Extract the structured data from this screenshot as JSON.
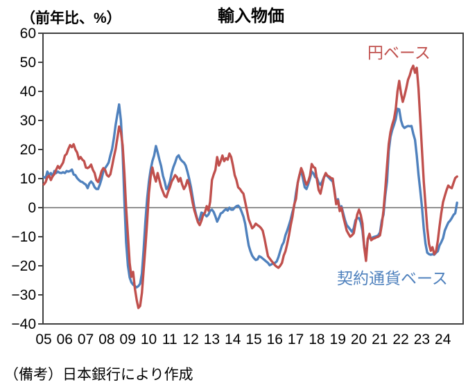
{
  "header": {
    "title": "輸入物価",
    "unit_label": "（前年比、%）"
  },
  "footer": {
    "note": "（備考）日本銀行により作成"
  },
  "chart_data": {
    "type": "line",
    "title": "輸入物価",
    "ylabel": "（前年比、%）",
    "xlabel": "",
    "ylim": [
      -40,
      60
    ],
    "xlim": [
      2005,
      2025
    ],
    "y_ticks": [
      60,
      50,
      40,
      30,
      20,
      10,
      0,
      -10,
      -20,
      -30,
      -40
    ],
    "x_tick_labels": [
      "05",
      "06",
      "07",
      "08",
      "09",
      "10",
      "11",
      "12",
      "13",
      "14",
      "15",
      "16",
      "17",
      "18",
      "19",
      "20",
      "21",
      "22",
      "23",
      "24"
    ],
    "frequency": "monthly",
    "grid": "zero-line-only",
    "zero_line_color": "#7F7F7F",
    "frame_color": "#3F3F3F",
    "legend_position": "inside-annotations",
    "series": [
      {
        "name": "契約通貨ベース",
        "color": "#4F81BD",
        "start": "2005-01",
        "values": [
          10.5,
          10.2,
          12.4,
          11.2,
          11.9,
          10.7,
          12.6,
          11.9,
          12.4,
          12.0,
          11.9,
          12.2,
          11.9,
          12.6,
          12.4,
          12.6,
          13.1,
          11.4,
          11.2,
          10.2,
          9.5,
          9.0,
          8.8,
          8.3,
          7.9,
          6.7,
          8.3,
          9.0,
          8.3,
          7.0,
          6.4,
          6.4,
          8.0,
          10.0,
          12.5,
          13.6,
          14.5,
          15.5,
          18.0,
          20.2,
          24.0,
          28.5,
          32.1,
          35.5,
          30.0,
          19.0,
          2.4,
          -11.9,
          -20.0,
          -24.0,
          -25.7,
          -26.5,
          -27.0,
          -27.4,
          -27.0,
          -26.2,
          -22.6,
          -14.3,
          -4.8,
          3.0,
          9.0,
          13.1,
          16.0,
          17.9,
          21.2,
          19.0,
          16.5,
          14.3,
          11.0,
          9.0,
          6.4,
          7.1,
          9.0,
          11.9,
          14.0,
          15.5,
          17.4,
          18.0,
          16.7,
          16.0,
          15.5,
          14.5,
          12.4,
          10.0,
          7.1,
          3.5,
          0.0,
          -2.5,
          -4.8,
          -4.0,
          -1.7,
          -2.0,
          -2.4,
          -3.0,
          -2.4,
          -1.0,
          -0.7,
          -1.5,
          -3.0,
          -4.8,
          -3.5,
          -2.0,
          -1.7,
          -1.0,
          -0.5,
          -1.0,
          0.0,
          -0.7,
          -0.7,
          0.0,
          0.5,
          0.7,
          0.0,
          -1.5,
          -3.1,
          -5.5,
          -9.5,
          -13.0,
          -15.0,
          -16.5,
          -17.4,
          -18.0,
          -17.8,
          -16.7,
          -17.0,
          -17.5,
          -18.0,
          -18.5,
          -19.0,
          -19.8,
          -19.5,
          -19.2,
          -19.0,
          -18.5,
          -17.0,
          -15.0,
          -13.0,
          -11.9,
          -9.5,
          -7.9,
          -6.0,
          -4.0,
          -1.5,
          0.5,
          5.0,
          8.5,
          11.2,
          12.6,
          10.0,
          7.0,
          6.4,
          8.0,
          10.0,
          12.4,
          11.8,
          10.5,
          10.2,
          8.5,
          7.9,
          9.0,
          10.5,
          11.4,
          10.8,
          10.2,
          9.5,
          9.0,
          6.0,
          1.7,
          2.9,
          -0.5,
          0.5,
          -1.9,
          -4.3,
          -6.0,
          -6.7,
          -7.5,
          -8.3,
          -7.1,
          -4.3,
          -3.6,
          -3.6,
          -5.0,
          -7.9,
          -13.6,
          -16.2,
          -11.0,
          -10.0,
          -10.7,
          -10.2,
          -10.0,
          -9.8,
          -9.5,
          -8.5,
          -4.5,
          -2.4,
          4.0,
          9.0,
          19.5,
          24.3,
          26.7,
          28.5,
          30.5,
          34.0,
          33.8,
          30.0,
          28.1,
          27.4,
          27.8,
          28.1,
          28.0,
          28.1,
          25.5,
          23.3,
          17.9,
          11.4,
          6.0,
          0.0,
          -7.1,
          -12.4,
          -15.5,
          -16.0,
          -16.2,
          -16.0,
          -16.2,
          -15.5,
          -15.0,
          -13.0,
          -11.9,
          -10.5,
          -7.9,
          -6.5,
          -5.2,
          -4.5,
          -3.6,
          -2.5,
          -1.9,
          1.7
        ]
      },
      {
        "name": "円ベース",
        "color": "#C0504D",
        "start": "2005-01",
        "values": [
          8.0,
          8.8,
          10.5,
          11.0,
          9.5,
          10.8,
          11.5,
          13.0,
          14.3,
          13.5,
          14.5,
          15.5,
          17.9,
          18.5,
          20.2,
          21.5,
          20.8,
          21.8,
          20.0,
          19.0,
          16.7,
          17.4,
          16.5,
          16.0,
          13.8,
          13.6,
          14.0,
          14.8,
          13.0,
          11.9,
          9.5,
          8.8,
          10.5,
          12.6,
          13.6,
          13.0,
          11.2,
          10.7,
          11.5,
          14.3,
          17.5,
          20.2,
          24.0,
          27.9,
          26.0,
          21.4,
          11.9,
          0.0,
          -9.5,
          -19.0,
          -23.8,
          -22.1,
          -27.9,
          -31.7,
          -34.5,
          -33.8,
          -29.3,
          -21.4,
          -13.6,
          -5.0,
          5.0,
          10.7,
          13.8,
          11.0,
          9.0,
          11.9,
          9.5,
          7.1,
          5.5,
          4.0,
          3.6,
          5.5,
          7.1,
          9.0,
          10.0,
          11.2,
          10.5,
          9.0,
          10.2,
          8.0,
          6.4,
          7.5,
          9.5,
          8.0,
          5.0,
          1.7,
          -1.0,
          -3.0,
          -5.0,
          -6.0,
          -4.5,
          -2.5,
          -1.7,
          0.5,
          -1.0,
          2.0,
          9.5,
          11.4,
          13.0,
          17.4,
          14.5,
          16.0,
          17.9,
          16.0,
          17.0,
          16.5,
          18.6,
          17.4,
          14.5,
          11.2,
          9.5,
          7.0,
          6.4,
          5.5,
          4.8,
          2.0,
          -1.0,
          -4.0,
          -5.5,
          -7.1,
          -6.5,
          -5.5,
          -6.0,
          -6.4,
          -7.0,
          -7.9,
          -10.5,
          -13.6,
          -16.7,
          -17.5,
          -18.3,
          -19.0,
          -19.8,
          -20.3,
          -20.7,
          -20.0,
          -19.0,
          -16.5,
          -15.0,
          -12.5,
          -9.5,
          -6.0,
          -3.1,
          1.0,
          3.0,
          8.5,
          11.2,
          13.6,
          12.0,
          9.5,
          7.9,
          9.0,
          11.0,
          15.0,
          14.0,
          13.6,
          9.5,
          6.0,
          4.8,
          7.5,
          10.5,
          11.9,
          11.0,
          10.7,
          10.2,
          10.0,
          5.5,
          1.2,
          2.4,
          -1.2,
          0.0,
          -3.0,
          -5.5,
          -7.9,
          -9.0,
          -10.0,
          -9.5,
          -8.8,
          -5.5,
          -2.4,
          -0.7,
          -2.5,
          -5.5,
          -13.6,
          -18.3,
          -10.7,
          -9.0,
          -11.2,
          -10.7,
          -10.5,
          -10.2,
          -10.0,
          -9.5,
          -6.0,
          -1.0,
          6.0,
          14.3,
          21.9,
          26.0,
          28.5,
          30.5,
          34.0,
          40.0,
          43.6,
          39.3,
          36.4,
          38.5,
          41.0,
          44.0,
          45.5,
          47.6,
          48.8,
          46.4,
          48.1,
          41.0,
          30.5,
          19.5,
          9.0,
          1.0,
          -7.0,
          -12.5,
          -14.8,
          -13.6,
          -16.0,
          -15.0,
          -11.5,
          -6.5,
          -2.0,
          1.9,
          4.0,
          6.0,
          7.6,
          7.0,
          6.7,
          8.5,
          10.2,
          10.7
        ]
      }
    ]
  }
}
